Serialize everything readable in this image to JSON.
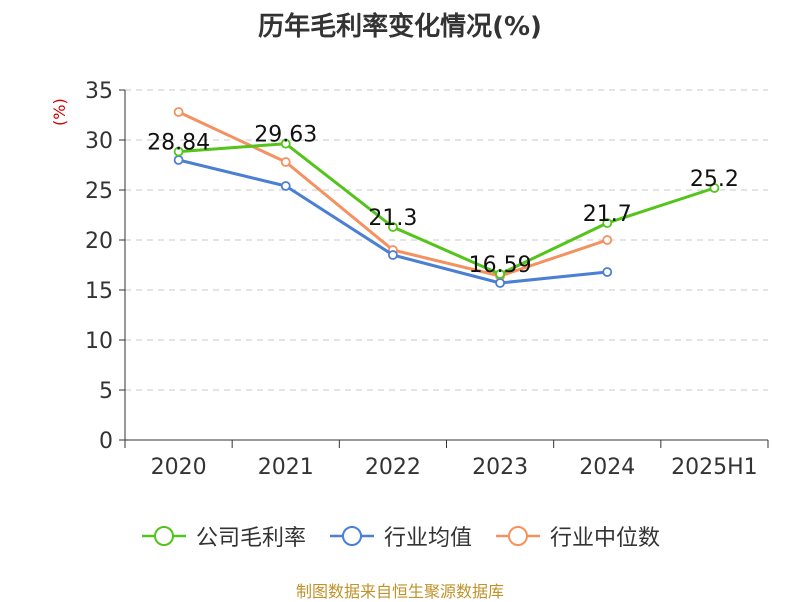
{
  "chart_data": {
    "type": "line",
    "title": "历年毛利率变化情况(%)",
    "ylabel": "(%)",
    "categories": [
      "2020",
      "2021",
      "2022",
      "2023",
      "2024",
      "2025H1"
    ],
    "ylim": [
      0,
      35
    ],
    "yticks": [
      0,
      5,
      10,
      15,
      20,
      25,
      30,
      35
    ],
    "grid": true,
    "legend_position": "bottom",
    "series": [
      {
        "name": "公司毛利率",
        "color": "#52c41a",
        "values": [
          28.84,
          29.63,
          21.3,
          16.59,
          21.7,
          25.2
        ],
        "data_labels": [
          "28.84",
          "29.63",
          "21.3",
          "16.59",
          "21.7",
          "25.2"
        ]
      },
      {
        "name": "行业均值",
        "color": "#4a7fd4",
        "values": [
          28.0,
          25.4,
          18.5,
          15.7,
          16.8,
          null
        ]
      },
      {
        "name": "行业中位数",
        "color": "#f59060",
        "values": [
          32.8,
          27.8,
          19.0,
          16.4,
          20.0,
          null
        ]
      }
    ]
  },
  "source": "制图数据来自恒生聚源数据库"
}
